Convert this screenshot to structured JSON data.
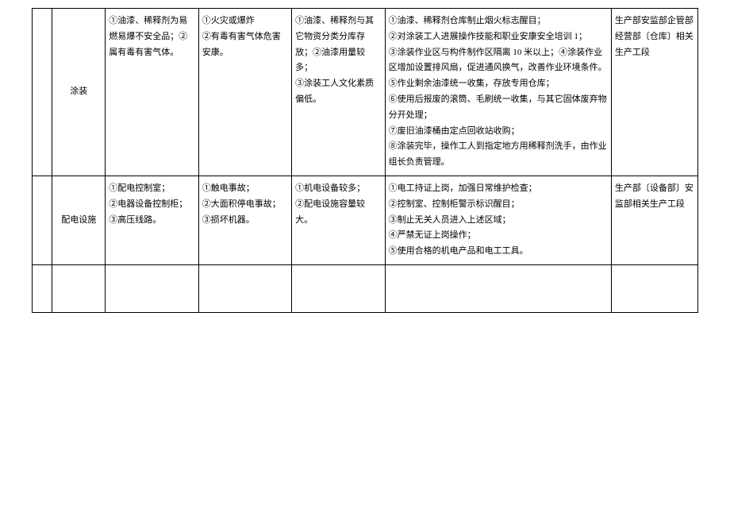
{
  "table": {
    "border_color": "#000000",
    "background_color": "#ffffff",
    "text_color": "#000000",
    "font_size": 11,
    "line_height": 1.8,
    "columns": [
      {
        "key": "num",
        "width_pct": 3
      },
      {
        "key": "name",
        "width_pct": 8
      },
      {
        "key": "a",
        "width_pct": 14
      },
      {
        "key": "b",
        "width_pct": 14
      },
      {
        "key": "c",
        "width_pct": 14
      },
      {
        "key": "d",
        "width_pct": 34
      },
      {
        "key": "e",
        "width_pct": 13
      }
    ],
    "rows": [
      {
        "num": "",
        "name": "涂装",
        "a": "①油漆、稀释剂为易燃易爆不安全品；②属有毒有害气体。",
        "b": "①火灾或爆炸\n②有毒有害气体危害安康。",
        "c": "①油漆、稀释剂与其它物资分类分库存放；②油漆用量较多；\n③涂装工人文化素质偏低。",
        "d": "①油漆、稀释剂仓库制止烟火标志醒目；\n②对涂装工人进展操作技能和职业安康安全培训 1；\n③涂装作业区与构件制作区隔离 10 米以上；④涂装作业区增加设置排风扇，促进通风换气，改善作业环境条件。\n⑤作业剩余油漆统一收集，存放专用仓库；\n⑥使用后报废的滚筒、毛刷统一收集，与其它固体废弃物分开处理；\n⑦废旧油漆桶由定点回收站收购；\n⑧涂装完毕，操作工人到指定地方用稀释剂洗手，由作业组长负责管理。",
        "e": "生产部安监部企管部经营部〔仓库〕相关生产工段"
      },
      {
        "num": "",
        "name": "配电设施",
        "a": "①配电控制室；\n②电器设备控制柜；\n③高压线路。",
        "b": "①触电事故；\n②大面积停电事故；\n③损坏机器。",
        "c": "①机电设备较多；\n②配电设施容量较大。",
        "d": "①电工持证上岗，加强日常维护检查；\n②控制室、控制柜警示标识醒目；\n③制止无关人员进入上述区域；\n④严禁无证上岗操作；\n⑤使用合格的机电产品和电工工具。",
        "e": "生产部〔设备部〕安监部相关生产工段"
      }
    ]
  }
}
